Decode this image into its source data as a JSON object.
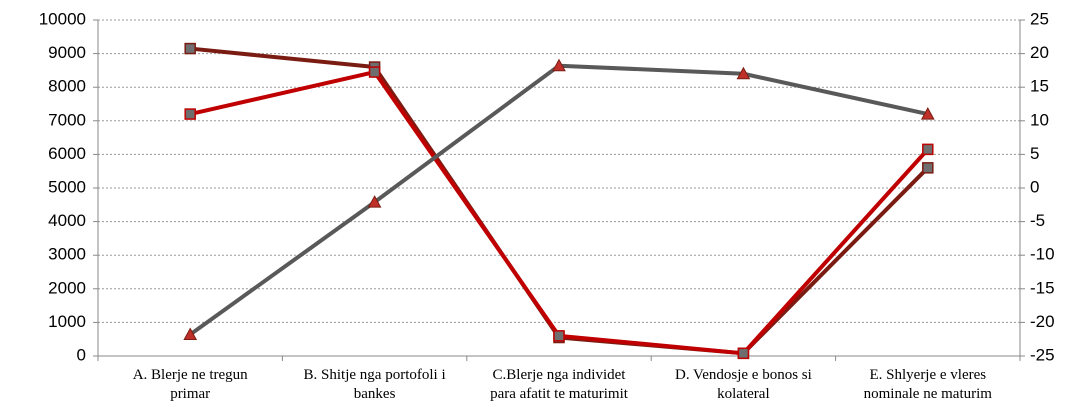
{
  "chart_data": {
    "type": "line",
    "categories": [
      "A. Blerje ne tregun primar",
      "B. Shitje nga portofoli i bankes",
      "C.Blerje nga individet para afatit te maturimit",
      "D. Vendosje e bonos si kolateral",
      "E. Shlyerje e vleres nominale ne maturim"
    ],
    "series": [
      {
        "color": "#7b1c12",
        "marker": "square",
        "marker_color": "#6e6e6e",
        "values": [
          9150,
          8600,
          550,
          80,
          5600
        ]
      },
      {
        "color": "#c00000",
        "marker": "square",
        "marker_color": "#6e6e6e",
        "values": [
          7200,
          8450,
          600,
          80,
          6150
        ]
      },
      {
        "color": "#595959",
        "marker": "triangle",
        "marker_color": "#c0302a",
        "axis": "y2",
        "values": [
          -21.8,
          -2.1,
          18.2,
          17,
          11
        ]
      }
    ],
    "ylim": [
      0,
      10000
    ],
    "yticks": [
      0,
      1000,
      2000,
      3000,
      4000,
      5000,
      6000,
      7000,
      8000,
      9000,
      10000
    ],
    "y2lim": [
      -25,
      25
    ],
    "y2ticks": [
      -25,
      -20,
      -15,
      -10,
      -5,
      0,
      5,
      10,
      15,
      20,
      25
    ],
    "grid": true
  }
}
